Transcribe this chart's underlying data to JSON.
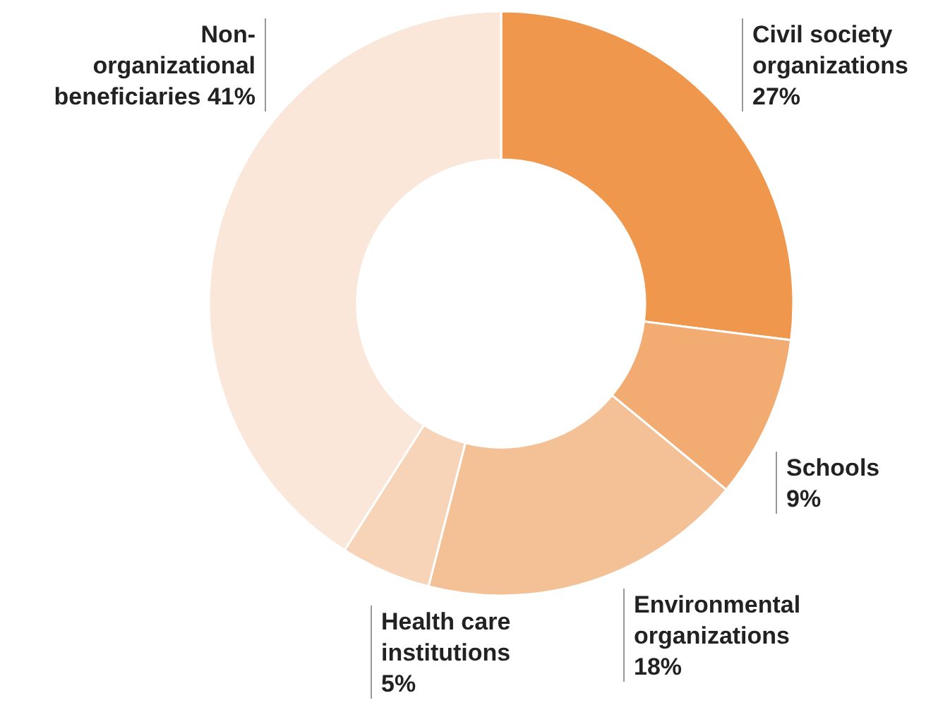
{
  "chart_data": {
    "type": "donut",
    "categories": [
      "Civil society organizations",
      "Schools",
      "Environmental organizations",
      "Health care institutions",
      "Non-organizational beneficiaries"
    ],
    "values": [
      27,
      9,
      18,
      5,
      41
    ],
    "colors": [
      "#f0974e",
      "#f2ab70",
      "#f4c096",
      "#f7d4b8",
      "#fae7da"
    ],
    "value_labels": [
      "27%",
      "9%",
      "18%",
      "5%",
      "41%"
    ]
  }
}
